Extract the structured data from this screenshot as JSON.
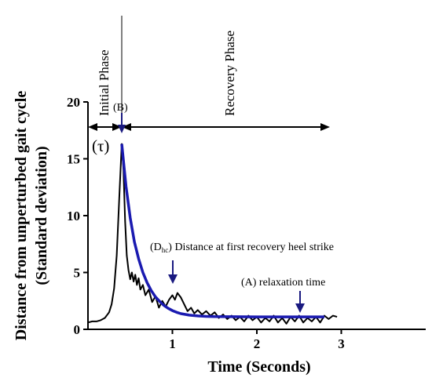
{
  "chart_data": {
    "type": "line",
    "xlabel": "Time (Seconds)",
    "ylabel_line1": "Distance from unperturbed gait cycle",
    "ylabel_line2": "(Standard deviation)",
    "xlim": [
      0,
      4
    ],
    "ylim": [
      0,
      20
    ],
    "x_ticks": [
      1,
      2,
      3
    ],
    "y_ticks": [
      0,
      5,
      10,
      15,
      20
    ],
    "grid": false,
    "series": [
      {
        "color": "#000000",
        "points": [
          [
            0,
            0.6
          ],
          [
            0.05,
            0.7
          ],
          [
            0.1,
            0.7
          ],
          [
            0.15,
            0.8
          ],
          [
            0.2,
            1.0
          ],
          [
            0.25,
            1.5
          ],
          [
            0.28,
            2.2
          ],
          [
            0.31,
            3.6
          ],
          [
            0.34,
            6.5
          ],
          [
            0.37,
            11.5
          ],
          [
            0.4,
            16.3
          ],
          [
            0.42,
            14.0
          ],
          [
            0.44,
            9.5
          ],
          [
            0.46,
            6.5
          ],
          [
            0.48,
            5.2
          ],
          [
            0.5,
            4.4
          ],
          [
            0.52,
            5.0
          ],
          [
            0.54,
            4.2
          ],
          [
            0.56,
            4.8
          ],
          [
            0.58,
            3.9
          ],
          [
            0.6,
            4.5
          ],
          [
            0.62,
            3.5
          ],
          [
            0.65,
            3.9
          ],
          [
            0.68,
            3.0
          ],
          [
            0.72,
            3.5
          ],
          [
            0.76,
            2.4
          ],
          [
            0.8,
            2.9
          ],
          [
            0.84,
            1.9
          ],
          [
            0.88,
            2.5
          ],
          [
            0.92,
            2.0
          ],
          [
            0.96,
            2.6
          ],
          [
            1.0,
            3.0
          ],
          [
            1.03,
            2.6
          ],
          [
            1.06,
            3.2
          ],
          [
            1.1,
            2.8
          ],
          [
            1.14,
            2.2
          ],
          [
            1.18,
            1.6
          ],
          [
            1.22,
            1.9
          ],
          [
            1.26,
            1.4
          ],
          [
            1.3,
            1.7
          ],
          [
            1.35,
            1.3
          ],
          [
            1.4,
            1.6
          ],
          [
            1.45,
            1.2
          ],
          [
            1.5,
            1.5
          ],
          [
            1.55,
            1.0
          ],
          [
            1.6,
            1.3
          ],
          [
            1.65,
            0.9
          ],
          [
            1.7,
            1.2
          ],
          [
            1.75,
            0.8
          ],
          [
            1.8,
            1.1
          ],
          [
            1.85,
            0.7
          ],
          [
            1.9,
            1.2
          ],
          [
            1.95,
            0.8
          ],
          [
            2.0,
            1.1
          ],
          [
            2.05,
            0.6
          ],
          [
            2.1,
            1.0
          ],
          [
            2.15,
            0.7
          ],
          [
            2.2,
            1.2
          ],
          [
            2.25,
            0.6
          ],
          [
            2.3,
            1.0
          ],
          [
            2.35,
            0.5
          ],
          [
            2.4,
            1.1
          ],
          [
            2.45,
            0.7
          ],
          [
            2.5,
            1.2
          ],
          [
            2.55,
            0.6
          ],
          [
            2.6,
            1.0
          ],
          [
            2.65,
            0.7
          ],
          [
            2.7,
            1.1
          ],
          [
            2.75,
            0.6
          ],
          [
            2.8,
            1.2
          ],
          [
            2.85,
            0.9
          ],
          [
            2.9,
            1.2
          ],
          [
            2.95,
            1.1
          ]
        ]
      },
      {
        "color": "#1a1ab0",
        "points": [
          [
            0.4,
            16.3
          ],
          [
            0.45,
            12.6
          ],
          [
            0.5,
            9.8
          ],
          [
            0.55,
            7.7
          ],
          [
            0.6,
            6.2
          ],
          [
            0.65,
            5.0
          ],
          [
            0.7,
            4.1
          ],
          [
            0.75,
            3.4
          ],
          [
            0.8,
            2.85
          ],
          [
            0.85,
            2.45
          ],
          [
            0.9,
            2.1
          ],
          [
            0.95,
            1.85
          ],
          [
            1.0,
            1.65
          ],
          [
            1.05,
            1.5
          ],
          [
            1.1,
            1.38
          ],
          [
            1.2,
            1.25
          ],
          [
            1.3,
            1.18
          ],
          [
            1.4,
            1.14
          ],
          [
            1.5,
            1.12
          ],
          [
            1.7,
            1.11
          ],
          [
            2.0,
            1.1
          ],
          [
            2.4,
            1.1
          ],
          [
            2.8,
            1.1
          ]
        ]
      }
    ],
    "annotations": {
      "initial_phase": "Initial Phase",
      "recovery_phase": "Recovery Phase",
      "tau": "(τ)",
      "b": "(B)",
      "dhc_prefix": "(D",
      "dhc_sub": "hc",
      "dhc_suffix": ") Distance at first recovery heel strike",
      "a": "(A) relaxation time"
    },
    "colors": {
      "signal": "#000000",
      "fit": "#1a1ab0",
      "markers": "#1a1a80"
    }
  }
}
